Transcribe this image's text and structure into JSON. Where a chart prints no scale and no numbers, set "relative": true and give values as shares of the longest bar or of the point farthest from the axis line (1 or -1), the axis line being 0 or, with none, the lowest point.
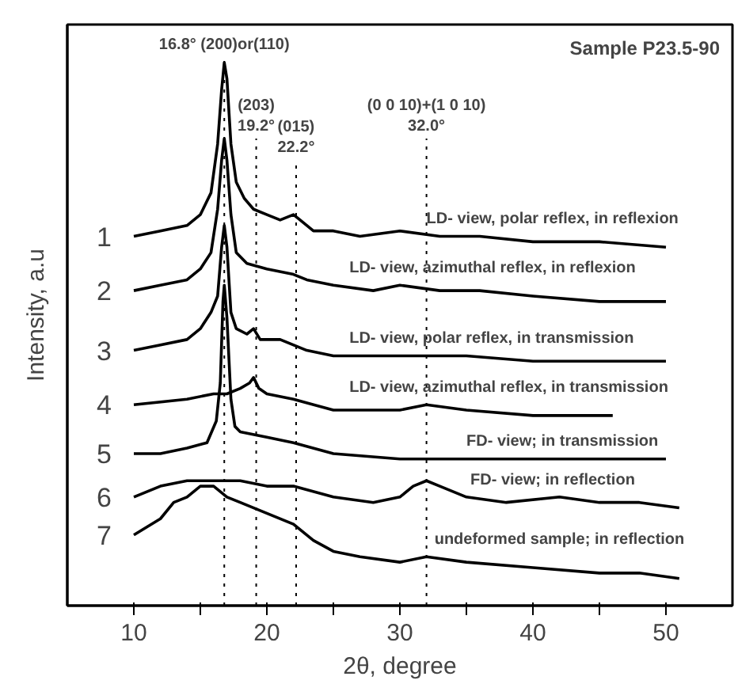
{
  "chart_data": {
    "type": "line",
    "relative": true,
    "title": "Sample P23.5-90",
    "xlabel": "2θ, degree",
    "ylabel": "Intensity, a.u",
    "xlim": [
      5,
      55
    ],
    "xticks": [
      10,
      {
        "value": 15,
        "label": null
      },
      20,
      {
        "value": 25,
        "label": null
      },
      30,
      {
        "value": 35,
        "label": null
      },
      40,
      {
        "value": 45,
        "label": null
      },
      50
    ],
    "grid": false,
    "marker": "none",
    "line_style": "solid",
    "series": [
      {
        "name": "1",
        "color": "#000000",
        "x": [
          10,
          12,
          14,
          15,
          15.8,
          16.3,
          16.6,
          16.8,
          17.0,
          17.3,
          17.7,
          18.3,
          19,
          20,
          21,
          22,
          22.5,
          23.5,
          25,
          27,
          30,
          33,
          36,
          40,
          45,
          50
        ],
        "values": [
          0.68,
          0.69,
          0.7,
          0.72,
          0.76,
          0.85,
          0.95,
          1.0,
          0.97,
          0.85,
          0.78,
          0.75,
          0.73,
          0.72,
          0.71,
          0.72,
          0.71,
          0.69,
          0.69,
          0.68,
          0.69,
          0.68,
          0.68,
          0.67,
          0.67,
          0.66
        ]
      },
      {
        "name": "2",
        "color": "#000000",
        "x": [
          10,
          12,
          14,
          15,
          15.8,
          16.3,
          16.6,
          16.8,
          17.0,
          17.3,
          17.7,
          18.5,
          20,
          22,
          23,
          25,
          28,
          30,
          33,
          36,
          40,
          45,
          50
        ],
        "values": [
          0.58,
          0.59,
          0.6,
          0.62,
          0.65,
          0.73,
          0.82,
          0.86,
          0.82,
          0.72,
          0.65,
          0.63,
          0.62,
          0.61,
          0.6,
          0.59,
          0.58,
          0.59,
          0.58,
          0.58,
          0.57,
          0.56,
          0.56
        ]
      },
      {
        "name": "3",
        "color": "#000000",
        "x": [
          10,
          12,
          14,
          15,
          15.8,
          16.3,
          16.6,
          16.8,
          17.0,
          17.3,
          17.7,
          18.5,
          19,
          19.5,
          21,
          23,
          25,
          28,
          30,
          35,
          40,
          45,
          50
        ],
        "values": [
          0.47,
          0.48,
          0.49,
          0.51,
          0.54,
          0.57,
          0.66,
          0.7,
          0.66,
          0.54,
          0.51,
          0.5,
          0.51,
          0.49,
          0.49,
          0.47,
          0.46,
          0.46,
          0.46,
          0.46,
          0.45,
          0.45,
          0.45
        ]
      },
      {
        "name": "4",
        "color": "#000000",
        "x": [
          10,
          14,
          16,
          17,
          18,
          18.7,
          19.0,
          19.4,
          20,
          22,
          25,
          28,
          30,
          32,
          35,
          40,
          45,
          46
        ],
        "values": [
          0.37,
          0.38,
          0.39,
          0.39,
          0.4,
          0.41,
          0.42,
          0.4,
          0.39,
          0.38,
          0.36,
          0.36,
          0.36,
          0.37,
          0.36,
          0.35,
          0.35,
          0.35
        ]
      },
      {
        "name": "5",
        "color": "#000000",
        "x": [
          10,
          12,
          14,
          15.5,
          16.2,
          16.5,
          16.7,
          16.8,
          17.0,
          17.3,
          17.6,
          18,
          20,
          22,
          25,
          30,
          35,
          40,
          45,
          50
        ],
        "values": [
          0.28,
          0.28,
          0.29,
          0.3,
          0.34,
          0.41,
          0.56,
          0.59,
          0.53,
          0.38,
          0.33,
          0.32,
          0.31,
          0.3,
          0.28,
          0.27,
          0.27,
          0.27,
          0.27,
          0.27
        ]
      },
      {
        "name": "6",
        "color": "#000000",
        "x": [
          10,
          12,
          14,
          16,
          18,
          20,
          22,
          25,
          28,
          30,
          31,
          32,
          33,
          35,
          38,
          42,
          45,
          48,
          51
        ],
        "values": [
          0.2,
          0.22,
          0.23,
          0.23,
          0.23,
          0.22,
          0.22,
          0.2,
          0.19,
          0.2,
          0.22,
          0.23,
          0.22,
          0.2,
          0.19,
          0.2,
          0.19,
          0.19,
          0.18
        ]
      },
      {
        "name": "7",
        "color": "#000000",
        "x": [
          10,
          12,
          13,
          14,
          15,
          15.5,
          16,
          17,
          18,
          20,
          22,
          23.5,
          25,
          27,
          30,
          32,
          35,
          40,
          45,
          48,
          51
        ],
        "values": [
          0.13,
          0.16,
          0.19,
          0.2,
          0.22,
          0.22,
          0.22,
          0.2,
          0.19,
          0.17,
          0.15,
          0.12,
          0.1,
          0.09,
          0.08,
          0.09,
          0.08,
          0.07,
          0.06,
          0.06,
          0.05
        ]
      }
    ],
    "ref_lines": [
      {
        "axis": "x",
        "value": 16.8,
        "label": "16.8° (200)or(110)",
        "line_style": "dotted"
      },
      {
        "axis": "x",
        "value": 19.2,
        "label": "(203)\n19.2°",
        "line_style": "dotted"
      },
      {
        "axis": "x",
        "value": 22.2,
        "label": "(015)\n22.2°",
        "line_style": "dotted"
      },
      {
        "axis": "x",
        "value": 32.0,
        "label": "(0 0 10)+(1 0 10)\n32.0°",
        "line_style": "dotted"
      }
    ],
    "annotations": [
      "LD- view, polar reflex, in reflexion",
      "LD- view, azimuthal reflex, in reflexion",
      "LD- view, polar reflex, in transmission",
      "LD- view, azimuthal reflex, in transmission",
      "FD- view; in transmission",
      "FD- view; in reflection",
      "undeformed sample; in reflection"
    ]
  }
}
